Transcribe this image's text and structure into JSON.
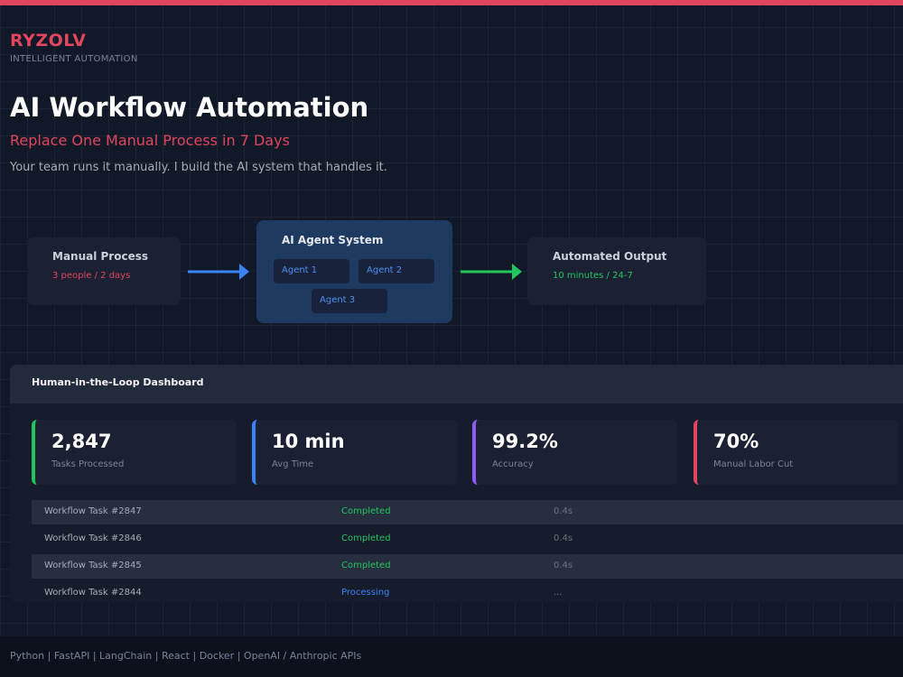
{
  "brand": {
    "name": "RYZOLV",
    "tagline": "INTELLIGENT AUTOMATION"
  },
  "hero": {
    "title": "AI Workflow Automation",
    "subtitle": "Replace One Manual Process in 7 Days",
    "description": "Your team runs it manually. I build the AI system that handles it."
  },
  "flow": {
    "manual": {
      "title": "Manual Process",
      "meta": "3 people / 2 days",
      "meta_color": "#e0465e"
    },
    "agents": {
      "title": "AI Agent System",
      "items": [
        "Agent 1",
        "Agent 2",
        "Agent 3"
      ]
    },
    "output": {
      "title": "Automated Output",
      "meta": "10 minutes / 24-7",
      "meta_color": "#22c55e"
    },
    "arrow_colors": [
      "#3b82f6",
      "#22c55e"
    ]
  },
  "dashboard": {
    "title": "Human-in-the-Loop Dashboard",
    "metrics": [
      {
        "value": "2,847",
        "label": "Tasks Processed",
        "color": "#22c55e"
      },
      {
        "value": "10 min",
        "label": "Avg Time",
        "color": "#3b82f6"
      },
      {
        "value": "99.2%",
        "label": "Accuracy",
        "color": "#8b5cf6"
      },
      {
        "value": "70%",
        "label": "Manual Labor Cut",
        "color": "#e0465e"
      }
    ],
    "tasks": [
      {
        "name": "Workflow Task #2847",
        "status": "Completed",
        "time": "0.4s"
      },
      {
        "name": "Workflow Task #2846",
        "status": "Completed",
        "time": "0.4s"
      },
      {
        "name": "Workflow Task #2845",
        "status": "Completed",
        "time": "0.4s"
      },
      {
        "name": "Workflow Task #2844",
        "status": "Processing",
        "time": "..."
      }
    ],
    "status_colors": {
      "Completed": "#22c55e",
      "Processing": "#3b82f6"
    }
  },
  "footer": {
    "text": "Python  |  FastAPI  |  LangChain  |  React  |  Docker  |  OpenAI / Anthropic APIs"
  }
}
